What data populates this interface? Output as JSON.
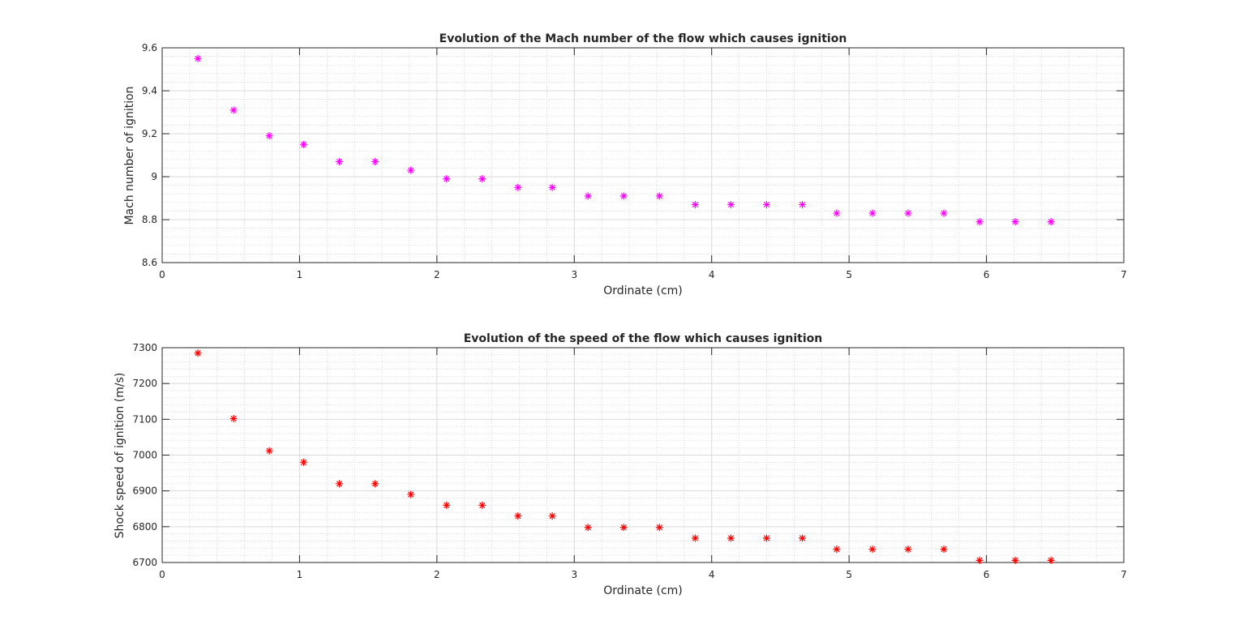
{
  "chart_data": [
    {
      "type": "scatter",
      "title": "Evolution of the Mach number of the flow which causes ignition",
      "xlabel": "Ordinate (cm)",
      "ylabel": "Mach number of ignition",
      "xlim": [
        0,
        7
      ],
      "ylim": [
        8.6,
        9.6
      ],
      "xticks": [
        "0",
        "1",
        "2",
        "3",
        "4",
        "5",
        "6",
        "7"
      ],
      "yticks": [
        "8.6",
        "8.8",
        "9",
        "9.2",
        "9.4",
        "9.6"
      ],
      "grid": true,
      "minor_grid": true,
      "marker": "asterisk",
      "color": "#ff00ff",
      "x": [
        0.26,
        0.52,
        0.78,
        1.03,
        1.29,
        1.55,
        1.81,
        2.07,
        2.33,
        2.59,
        2.84,
        3.1,
        3.36,
        3.62,
        3.88,
        4.14,
        4.4,
        4.66,
        4.91,
        5.17,
        5.43,
        5.69,
        5.95,
        6.21,
        6.47
      ],
      "y": [
        9.55,
        9.31,
        9.19,
        9.15,
        9.07,
        9.07,
        9.03,
        8.99,
        8.99,
        8.95,
        8.95,
        8.91,
        8.91,
        8.91,
        8.87,
        8.87,
        8.87,
        8.87,
        8.83,
        8.83,
        8.83,
        8.83,
        8.79,
        8.79,
        8.79
      ]
    },
    {
      "type": "scatter",
      "title": "Evolution of the speed of the flow which causes ignition",
      "xlabel": "Ordinate (cm)",
      "ylabel": "Shock speed of ignition (m/s)",
      "xlim": [
        0,
        7
      ],
      "ylim": [
        6700,
        7300
      ],
      "xticks": [
        "0",
        "1",
        "2",
        "3",
        "4",
        "5",
        "6",
        "7"
      ],
      "yticks": [
        "6700",
        "6800",
        "6900",
        "7000",
        "7100",
        "7200",
        "7300"
      ],
      "grid": true,
      "minor_grid": true,
      "marker": "asterisk",
      "color": "#ff0000",
      "x": [
        0.26,
        0.52,
        0.78,
        1.03,
        1.29,
        1.55,
        1.81,
        2.07,
        2.33,
        2.59,
        2.84,
        3.1,
        3.36,
        3.62,
        3.88,
        4.14,
        4.4,
        4.66,
        4.91,
        5.17,
        5.43,
        5.69,
        5.95,
        6.21,
        6.47
      ],
      "y": [
        7285,
        7102,
        7012,
        6980,
        6920,
        6920,
        6890,
        6860,
        6860,
        6830,
        6830,
        6798,
        6798,
        6798,
        6768,
        6768,
        6768,
        6768,
        6737,
        6737,
        6737,
        6737,
        6706,
        6706,
        6706
      ]
    }
  ]
}
